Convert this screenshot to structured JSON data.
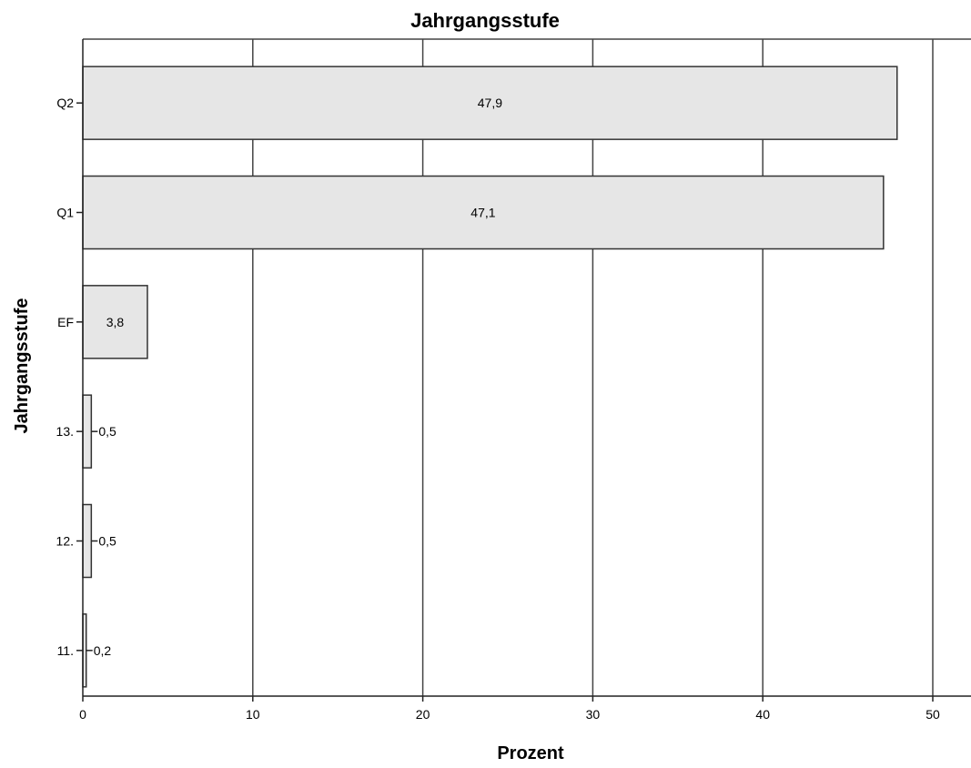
{
  "chart_data": {
    "type": "bar",
    "orientation": "horizontal",
    "title": "Jahrgangsstufe",
    "xlabel": "Prozent",
    "ylabel": "Jahrgangsstufe",
    "categories": [
      "Q2",
      "Q1",
      "EF",
      "13.",
      "12.",
      "11."
    ],
    "values": [
      47.9,
      47.1,
      3.8,
      0.5,
      0.5,
      0.2
    ],
    "data_labels": [
      "47,9",
      "47,1",
      "3,8",
      "0,5",
      "0,5",
      "0,2"
    ],
    "xlim": [
      0,
      52
    ],
    "xticks": [
      0,
      10,
      20,
      30,
      40,
      50
    ],
    "grid": "vertical",
    "legend": "none"
  },
  "colors": {
    "bar_fill": "#e6e6e6",
    "bar_stroke": "#333333",
    "grid": "#444444",
    "axis": "#222222"
  }
}
